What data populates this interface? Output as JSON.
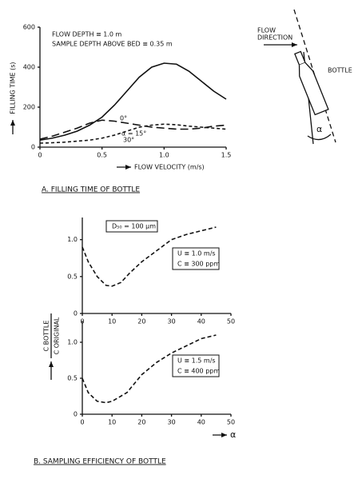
{
  "chart_data": [
    {
      "type": "line",
      "x_label": "FLOW VELOCITY (m/s)",
      "y_label": "FILLING TIME (s)",
      "annotations": [
        "FLOW DEPTH ≅ 1.0 m",
        "SAMPLE DEPTH ABOVE BED ≅ 0.35 m"
      ],
      "x": [
        0,
        0.1,
        0.2,
        0.3,
        0.4,
        0.5,
        0.6,
        0.7,
        0.8,
        0.9,
        1.0,
        1.1,
        1.2,
        1.3,
        1.4,
        1.5
      ],
      "series": [
        {
          "name": "α = 15°",
          "color": "#111111",
          "line_style": "solid",
          "values": [
            35,
            45,
            60,
            80,
            110,
            150,
            210,
            280,
            350,
            400,
            420,
            415,
            380,
            330,
            280,
            240
          ]
        },
        {
          "name": "0°",
          "color": "#111111",
          "line_style": "long-dash",
          "values": [
            40,
            55,
            75,
            95,
            120,
            135,
            130,
            120,
            110,
            100,
            95,
            90,
            90,
            95,
            105,
            110
          ]
        },
        {
          "name": "30°",
          "color": "#111111",
          "line_style": "short-dash",
          "values": [
            20,
            22,
            25,
            30,
            35,
            45,
            60,
            80,
            100,
            110,
            115,
            112,
            105,
            100,
            95,
            90
          ]
        }
      ],
      "xlim": [
        0,
        1.5
      ],
      "xticks": [
        0,
        0.5,
        {
          "value": 1,
          "label": "1.0"
        },
        1.5
      ],
      "ylim": [
        0,
        600
      ],
      "yticks": [
        0,
        200,
        400,
        600
      ]
    },
    {
      "type": "line",
      "annotations": [
        "D₅₀ = 100 μm",
        "U ≅ 1.0 m/s",
        "C ≅ 300 ppm"
      ],
      "x": [
        0,
        2,
        5,
        8,
        10,
        13,
        16,
        20,
        25,
        30,
        35,
        40,
        45
      ],
      "series": [
        {
          "color": "#111111",
          "line_style": "dash",
          "values": [
            0.9,
            0.7,
            0.5,
            0.38,
            0.37,
            0.42,
            0.55,
            0.7,
            0.85,
            1.0,
            1.07,
            1.12,
            1.17
          ]
        }
      ],
      "xlim": [
        0,
        50
      ],
      "xticks": [
        0,
        10,
        20,
        30,
        40,
        50
      ],
      "ylim": [
        0,
        1.3
      ],
      "yticks": [
        0,
        0.5,
        {
          "value": 1,
          "label": "1.0"
        }
      ]
    },
    {
      "type": "line",
      "x_label": "α",
      "annotations": [
        "U ≅ 1.5 m/s",
        "C ≅ 400 ppm"
      ],
      "x": [
        0,
        2,
        5,
        8,
        10,
        15,
        20,
        25,
        30,
        35,
        40,
        45
      ],
      "series": [
        {
          "color": "#111111",
          "line_style": "dash",
          "values": [
            0.5,
            0.3,
            0.18,
            0.16,
            0.18,
            0.3,
            0.55,
            0.72,
            0.85,
            0.95,
            1.05,
            1.1
          ]
        }
      ],
      "xlim": [
        0,
        50
      ],
      "xticks": [
        0,
        10,
        20,
        30,
        40,
        50
      ],
      "ylim": [
        0,
        1.3
      ],
      "yticks": [
        0,
        0.5,
        {
          "value": 1,
          "label": "1.0"
        }
      ]
    }
  ],
  "efficiency_label": {
    "numerator": "C BOTTLE",
    "denominator": "C ORIGINAL"
  },
  "diagram": {
    "flow_direction": [
      "FLOW",
      "DIRECTION"
    ],
    "bottle": "BOTTLE",
    "angle": "α"
  },
  "captions": [
    "A. FILLING TIME OF BOTTLE",
    "B. SAMPLING EFFICIENCY OF BOTTLE"
  ]
}
